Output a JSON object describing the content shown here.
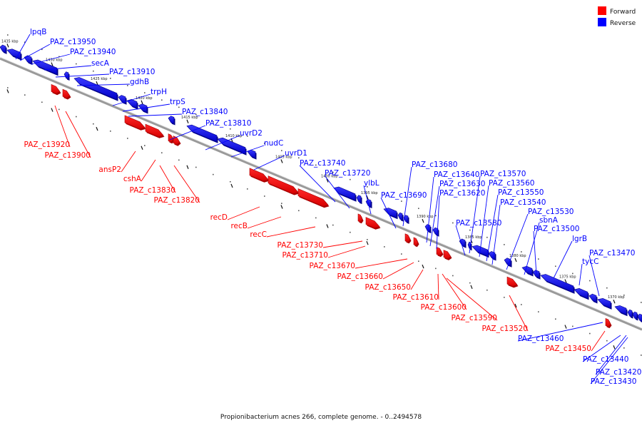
{
  "caption": "Propionibacterium acnes 266, complete genome. - 0..2494578",
  "legend": [
    {
      "label": "Forward",
      "color": "#ff0000"
    },
    {
      "label": "Reverse",
      "color": "#0000ff"
    }
  ],
  "colors": {
    "forward": "#ff0000",
    "reverse": "#0000ff",
    "forward_dark": "#aa0000",
    "reverse_dark": "#00008a",
    "axis": "#555555"
  },
  "ticks": [
    "1435 kbp",
    "1430 kbp",
    "1425 kbp",
    "1420 kbp",
    "1415 kbp",
    "1410 kbp",
    "1405 kbp",
    "1400 kbp",
    "1395 kbp",
    "1390 kbp",
    "1385 kbp",
    "1380 kbp",
    "1375 kbp",
    "1370 kbp"
  ],
  "reverse_labels": [
    "lpqB",
    "PAZ_c13950",
    "PAZ_c13940",
    "secA",
    "PAZ_c13910",
    "gdhB",
    "trpH",
    "trpS",
    "PAZ_c13840",
    "PAZ_c13810",
    "uvrD2",
    "nudC",
    "uvrD1",
    "PAZ_c13740",
    "PAZ_c13720",
    "ylbL",
    "PAZ_c13690",
    "PAZ_c13680",
    "PAZ_c13640",
    "PAZ_c13630",
    "PAZ_c13620",
    "PAZ_c13580",
    "PAZ_c13570",
    "PAZ_c13560",
    "PAZ_c13550",
    "PAZ_c13540",
    "PAZ_c13530",
    "sbnA",
    "PAZ_c13500",
    "lgrB",
    "tycC",
    "PAZ_c13470",
    "PAZ_c13460",
    "PAZ_c13440",
    "PAZ_c13420",
    "PAZ_c13430"
  ],
  "forward_labels": [
    "PAZ_c13920",
    "PAZ_c13900",
    "ansP2",
    "cshA",
    "PAZ_c13830",
    "PAZ_c13820",
    "recD",
    "recB",
    "recC",
    "PAZ_c13730",
    "PAZ_c13710",
    "PAZ_c13670",
    "PAZ_c13660",
    "PAZ_c13650",
    "PAZ_c13610",
    "PAZ_c13600",
    "PAZ_c13590",
    "PAZ_c13520",
    "PAZ_c13450"
  ]
}
